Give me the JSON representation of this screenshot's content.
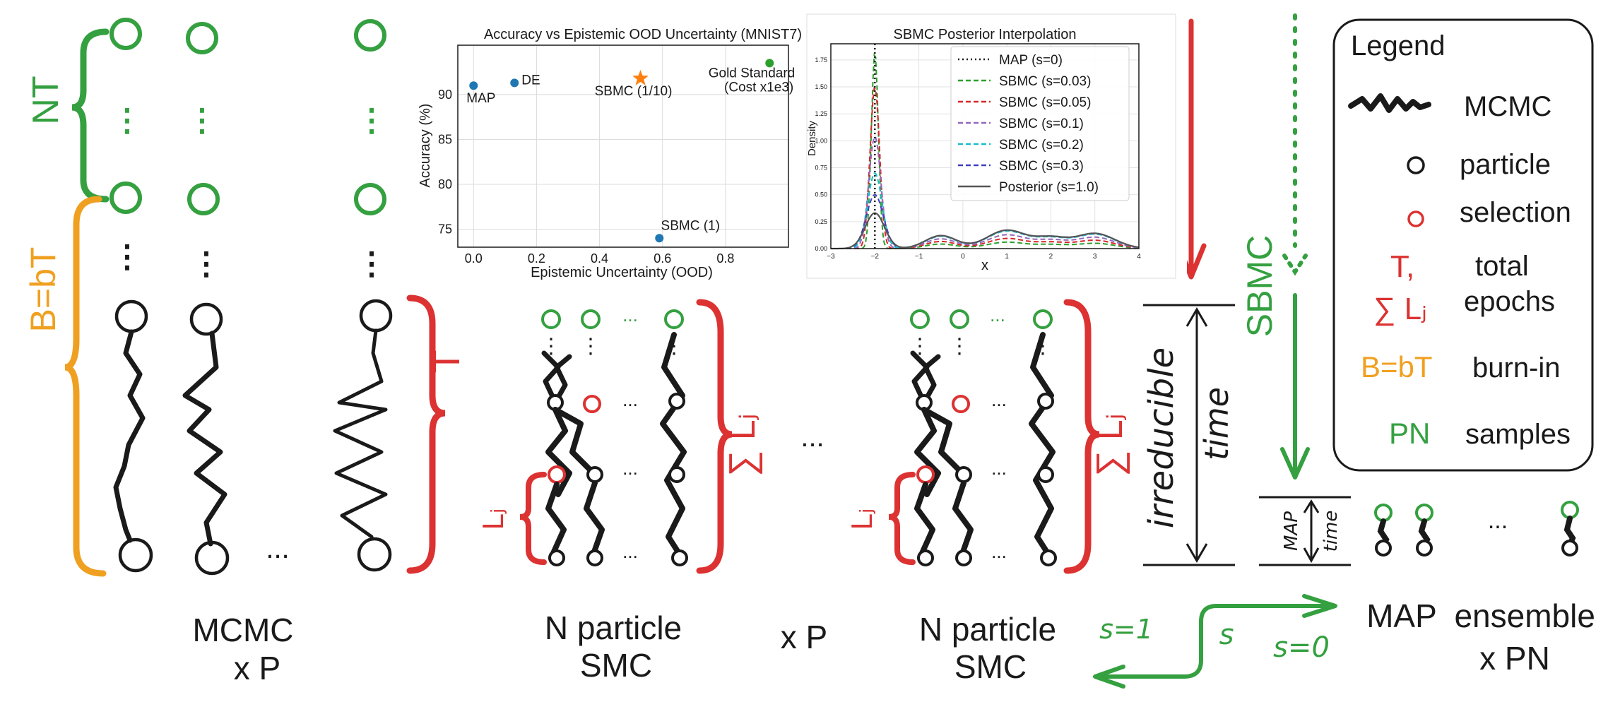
{
  "colors": {
    "green": "#34a040",
    "orange": "#f0a020",
    "red": "#dc3232",
    "black": "#1a1a1a",
    "blue": "#1f77b4",
    "star": "#ff7f0e",
    "gold": "#2ca02c"
  },
  "labels": {
    "nt": "NT",
    "bbt": "B=bT",
    "t": "T",
    "sum_lj": "∑ Lⱼ",
    "lj": "Lⱼ",
    "sbmc": "SBMC",
    "irreducible": "irreducible",
    "time": "time",
    "map_small": "MAP",
    "time_small": "time",
    "ellipsis": "...",
    "vdots": "⋮",
    "s1": "s=1",
    "s": "s",
    "s0": "s=0"
  },
  "bottom": {
    "mcmc_line1": "MCMC",
    "mcmc_line2": "x P",
    "smc1_line1": "N particle",
    "smc1_line2": "SMC",
    "xp": "x P",
    "smc2_line1": "N particle",
    "smc2_line2": "SMC",
    "map_line1": "MAP  ensemble",
    "map_line2": "x PN"
  },
  "legend": {
    "title": "Legend",
    "mcmc": "MCMC",
    "particle": "particle",
    "selection": "selection",
    "t_sym": "T,",
    "sum_sym": "∑ Lⱼ",
    "total1": "total",
    "total2": "epochs",
    "bbt_sym": "B=bT",
    "burnin": "burn-in",
    "pn_sym": "PN",
    "samples": "samples"
  },
  "chart_data": [
    {
      "type": "scatter",
      "title": "Accuracy vs Epistemic OOD Uncertainty (MNIST7)",
      "xlabel": "Epistemic Uncertainty (OOD)",
      "ylabel": "Accuracy (%)",
      "xlim": [
        -0.05,
        1.0
      ],
      "ylim": [
        73,
        95.5
      ],
      "xticks": [
        0.0,
        0.2,
        0.4,
        0.6,
        0.8
      ],
      "xtick_labels": [
        "0.0",
        "0.2",
        "0.4",
        "0.6",
        "0.8"
      ],
      "yticks": [
        75,
        80,
        85,
        90
      ],
      "ytick_labels": [
        "75",
        "80",
        "85",
        "90"
      ],
      "grid": true,
      "points": [
        {
          "label": "MAP",
          "x": 0.0,
          "y": 91.0,
          "marker": "circle",
          "color": "#1f77b4",
          "anchor": "below"
        },
        {
          "label": "DE",
          "x": 0.13,
          "y": 91.3,
          "marker": "circle",
          "color": "#1f77b4",
          "anchor": "right"
        },
        {
          "label": "SBMC (1/10)",
          "x": 0.53,
          "y": 91.8,
          "marker": "star",
          "color": "#ff7f0e",
          "anchor": "below"
        },
        {
          "label": "SBMC (1)",
          "x": 0.59,
          "y": 74.0,
          "marker": "circle",
          "color": "#1f77b4",
          "anchor": "above"
        },
        {
          "label": "Gold Standard\n(Cost x1e3)",
          "x": 0.94,
          "y": 93.5,
          "marker": "circle",
          "color": "#2ca02c",
          "anchor": "left"
        }
      ]
    },
    {
      "type": "line",
      "title": "SBMC Posterior Interpolation",
      "xlabel": "x",
      "ylabel": "Density",
      "xlim": [
        -3,
        4
      ],
      "ylim": [
        0,
        1.9
      ],
      "xticks": [
        -3,
        -2,
        -1,
        0,
        1,
        2,
        3,
        4
      ],
      "xtick_labels": [
        "−3",
        "−2",
        "−1",
        "0",
        "1",
        "2",
        "3",
        "4"
      ],
      "yticks": [
        0.0,
        0.25,
        0.5,
        0.75,
        1.0,
        1.25,
        1.5,
        1.75
      ],
      "ytick_labels": [
        "0.00",
        "0.25",
        "0.50",
        "0.75",
        "1.00",
        "1.25",
        "1.50",
        "1.75"
      ],
      "grid": true,
      "legend": "top-right",
      "vline": {
        "label": "MAP (s=0)",
        "x": -2
      },
      "series": [
        {
          "name": "SBMC (s=0.03)",
          "color": "#2ca02c",
          "dash": true,
          "peak": 1.82
        },
        {
          "name": "SBMC (s=0.05)",
          "color": "#d62728",
          "dash": true,
          "peak": 1.5
        },
        {
          "name": "SBMC (s=0.1)",
          "color": "#9467bd",
          "dash": true,
          "peak": 1.04
        },
        {
          "name": "SBMC (s=0.2)",
          "color": "#17becf",
          "dash": true,
          "peak": 0.7
        },
        {
          "name": "SBMC (s=0.3)",
          "color": "#4040c0",
          "dash": true,
          "peak": 0.5
        },
        {
          "name": "Posterior (s=1.0)",
          "color": "#555555",
          "dash": false,
          "peak": 0.33
        }
      ]
    }
  ]
}
